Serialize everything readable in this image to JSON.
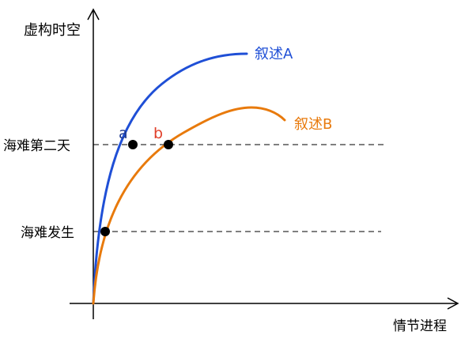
{
  "axes": {
    "y_label": "虚构时空",
    "x_label": "情节进程"
  },
  "levels": [
    {
      "label": "海难第二天"
    },
    {
      "label": "海难发生"
    }
  ],
  "curves": [
    {
      "label": "叙述A",
      "color": "#1f4fd6"
    },
    {
      "label": "叙述B",
      "color": "#e87a0c"
    }
  ],
  "points": [
    {
      "label": "a",
      "color": "#1f3b8f"
    },
    {
      "label": "b",
      "color": "#e0402a"
    }
  ],
  "colors": {
    "axis": "#000000",
    "dashed_line": "#333333",
    "point": "#000000"
  }
}
